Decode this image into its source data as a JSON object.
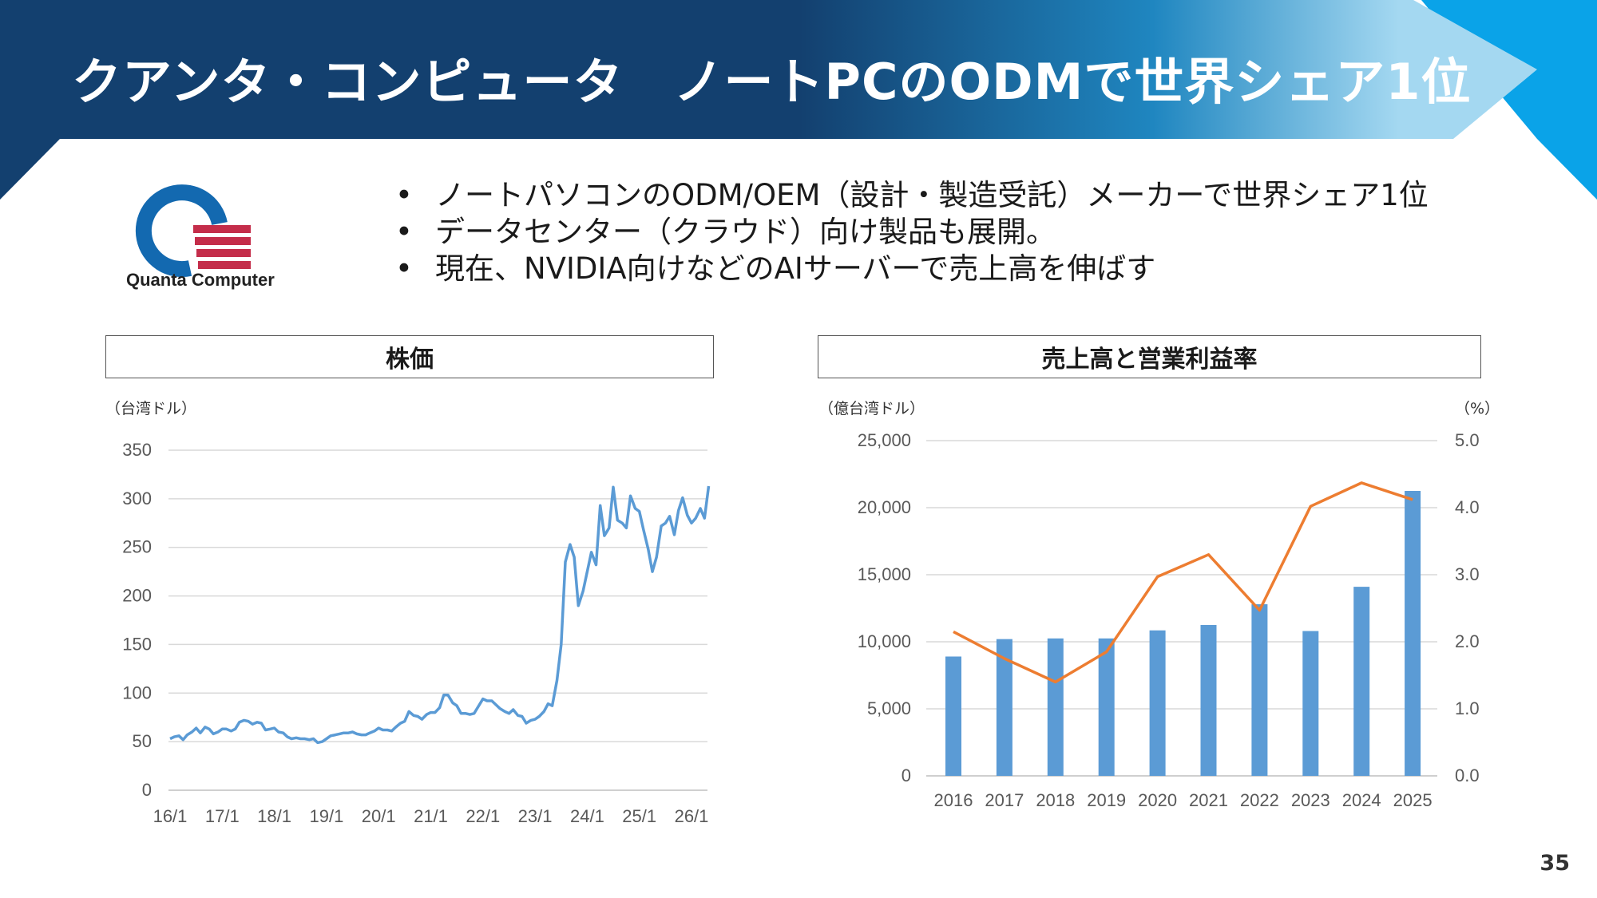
{
  "slide": {
    "title": "クアンタ・コンピュータ　ノートPCのODMで世界シェア1位",
    "logo_text": "Quanta Computer",
    "bullets": [
      "ノートパソコンのODM/OEM（設計・製造受託）メーカーで世界シェア1位",
      "データセンター（クラウド）向け製品も展開。",
      "現在、NVIDIA向けなどのAIサーバーで売上高を伸ばす"
    ],
    "bullet_glyph": "•",
    "page_number": "35",
    "colors": {
      "banner_dark": "#13406f",
      "banner_light": "#8ccdee",
      "accent_cyan": "#0aa3e8",
      "logo_blue": "#1369b0",
      "logo_red": "#c42d4a"
    }
  },
  "chart_data": [
    {
      "type": "line",
      "title": "株価",
      "unit_label": "（台湾ドル）",
      "y_ticks": [
        "350",
        "300",
        "250",
        "200",
        "150",
        "100",
        "50",
        "0"
      ],
      "x_ticks": [
        "16/1",
        "17/1",
        "18/1",
        "19/1",
        "20/1",
        "21/1",
        "22/1",
        "23/1",
        "24/1",
        "25/1",
        "26/1"
      ],
      "ylim": [
        0,
        350
      ],
      "x_unit": "years since 2016/1",
      "series": [
        {
          "color": "#5b9bd5",
          "points": [
            [
              0.0,
              53
            ],
            [
              0.08,
              55
            ],
            [
              0.17,
              56
            ],
            [
              0.25,
              52
            ],
            [
              0.33,
              57
            ],
            [
              0.42,
              60
            ],
            [
              0.5,
              64
            ],
            [
              0.58,
              59
            ],
            [
              0.67,
              65
            ],
            [
              0.75,
              63
            ],
            [
              0.83,
              58
            ],
            [
              0.92,
              60
            ],
            [
              1.0,
              63
            ],
            [
              1.08,
              63
            ],
            [
              1.17,
              61
            ],
            [
              1.25,
              63
            ],
            [
              1.33,
              70
            ],
            [
              1.42,
              72
            ],
            [
              1.5,
              71
            ],
            [
              1.58,
              68
            ],
            [
              1.67,
              70
            ],
            [
              1.75,
              69
            ],
            [
              1.83,
              62
            ],
            [
              1.92,
              63
            ],
            [
              2.0,
              64
            ],
            [
              2.08,
              60
            ],
            [
              2.17,
              59
            ],
            [
              2.25,
              55
            ],
            [
              2.33,
              53
            ],
            [
              2.42,
              54
            ],
            [
              2.5,
              53
            ],
            [
              2.58,
              53
            ],
            [
              2.67,
              52
            ],
            [
              2.75,
              53
            ],
            [
              2.83,
              49
            ],
            [
              2.92,
              50
            ],
            [
              3.0,
              53
            ],
            [
              3.08,
              56
            ],
            [
              3.17,
              57
            ],
            [
              3.25,
              58
            ],
            [
              3.33,
              59
            ],
            [
              3.42,
              59
            ],
            [
              3.5,
              60
            ],
            [
              3.58,
              58
            ],
            [
              3.67,
              57
            ],
            [
              3.75,
              57
            ],
            [
              3.83,
              59
            ],
            [
              3.92,
              61
            ],
            [
              4.0,
              64
            ],
            [
              4.08,
              62
            ],
            [
              4.17,
              62
            ],
            [
              4.25,
              61
            ],
            [
              4.33,
              65
            ],
            [
              4.42,
              69
            ],
            [
              4.5,
              71
            ],
            [
              4.58,
              81
            ],
            [
              4.67,
              77
            ],
            [
              4.75,
              76
            ],
            [
              4.83,
              73
            ],
            [
              4.92,
              78
            ],
            [
              5.0,
              80
            ],
            [
              5.08,
              80
            ],
            [
              5.17,
              85
            ],
            [
              5.25,
              98
            ],
            [
              5.33,
              98
            ],
            [
              5.42,
              90
            ],
            [
              5.5,
              87
            ],
            [
              5.58,
              79
            ],
            [
              5.67,
              79
            ],
            [
              5.75,
              78
            ],
            [
              5.83,
              79
            ],
            [
              5.92,
              87
            ],
            [
              6.0,
              94
            ],
            [
              6.08,
              92
            ],
            [
              6.17,
              92
            ],
            [
              6.25,
              88
            ],
            [
              6.33,
              84
            ],
            [
              6.42,
              81
            ],
            [
              6.5,
              79
            ],
            [
              6.58,
              83
            ],
            [
              6.67,
              77
            ],
            [
              6.75,
              76
            ],
            [
              6.83,
              69
            ],
            [
              6.92,
              72
            ],
            [
              7.0,
              73
            ],
            [
              7.08,
              76
            ],
            [
              7.17,
              81
            ],
            [
              7.25,
              89
            ],
            [
              7.33,
              87
            ],
            [
              7.42,
              113
            ],
            [
              7.5,
              150
            ],
            [
              7.58,
              235
            ],
            [
              7.67,
              253
            ],
            [
              7.75,
              240
            ],
            [
              7.83,
              190
            ],
            [
              7.92,
              205
            ],
            [
              8.0,
              225
            ],
            [
              8.08,
              245
            ],
            [
              8.17,
              232
            ],
            [
              8.25,
              293
            ],
            [
              8.33,
              262
            ],
            [
              8.42,
              270
            ],
            [
              8.5,
              312
            ],
            [
              8.58,
              278
            ],
            [
              8.67,
              275
            ],
            [
              8.75,
              270
            ],
            [
              8.83,
              303
            ],
            [
              8.92,
              290
            ],
            [
              9.0,
              287
            ],
            [
              9.08,
              268
            ],
            [
              9.17,
              248
            ],
            [
              9.25,
              225
            ],
            [
              9.33,
              240
            ],
            [
              9.42,
              272
            ],
            [
              9.5,
              275
            ],
            [
              9.58,
              282
            ],
            [
              9.67,
              263
            ],
            [
              9.75,
              288
            ],
            [
              9.83,
              301
            ],
            [
              9.92,
              283
            ],
            [
              10.0,
              275
            ],
            [
              10.08,
              280
            ],
            [
              10.17,
              290
            ],
            [
              10.25,
              280
            ],
            [
              10.33,
              313
            ]
          ]
        }
      ]
    },
    {
      "type": "bar",
      "title": "売上高と営業利益率",
      "unit_left": "（億台湾ドル）",
      "unit_right": "（%）",
      "categories": [
        "2016",
        "2017",
        "2018",
        "2019",
        "2020",
        "2021",
        "2022",
        "2023",
        "2024",
        "2025"
      ],
      "y_left_ticks": [
        "25,000",
        "20,000",
        "15,000",
        "10,000",
        "5,000",
        "0"
      ],
      "y_right_ticks": [
        "5.0",
        "4.0",
        "3.0",
        "2.0",
        "1.0",
        "0.0"
      ],
      "ylim_left": [
        0,
        25000
      ],
      "ylim_right": [
        0,
        5
      ],
      "series": [
        {
          "axis": "left",
          "kind": "bar",
          "color": "#5b9bd5",
          "values": [
            8900,
            10200,
            10250,
            10250,
            10850,
            11250,
            12800,
            10800,
            14100,
            21250
          ]
        },
        {
          "axis": "right",
          "kind": "line",
          "color": "#ed7d31",
          "values": [
            2.15,
            1.75,
            1.4,
            1.85,
            2.97,
            3.3,
            2.47,
            4.02,
            4.37,
            4.12
          ]
        }
      ]
    }
  ]
}
